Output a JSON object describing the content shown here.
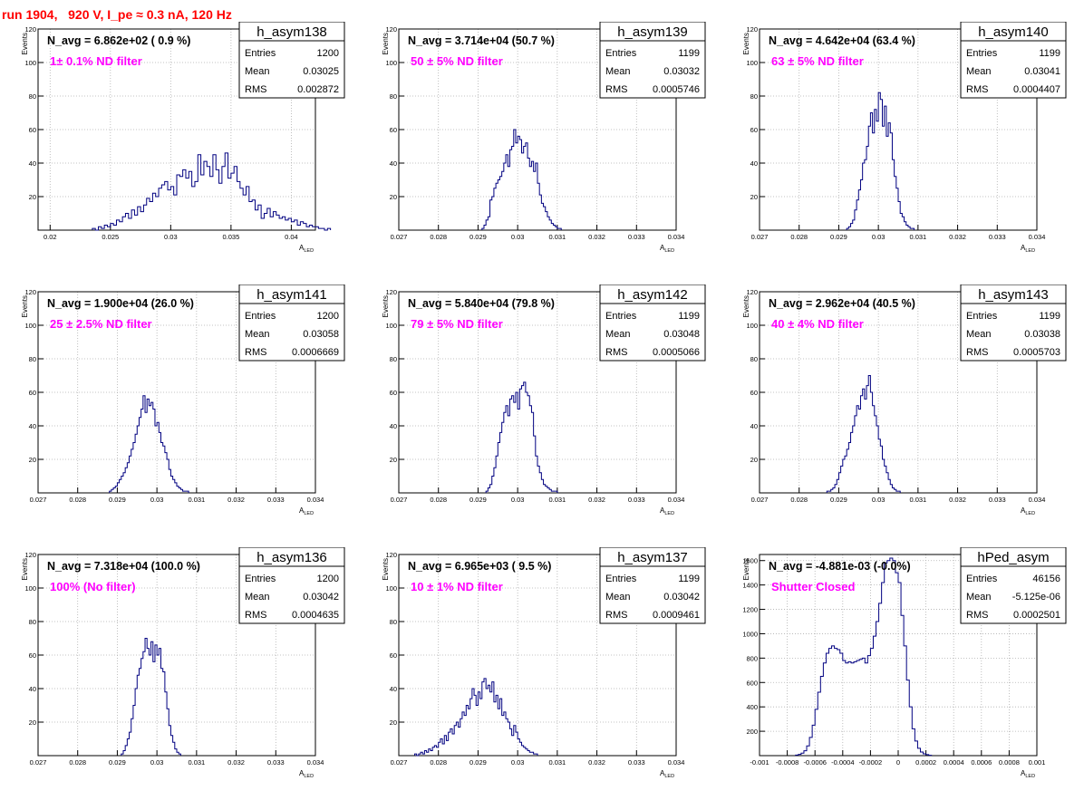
{
  "run_title": "run 1904,   920 V, I_pe ≈ 0.3 nA, 120 Hz",
  "ylabel": "Events",
  "xlabel_main": "A",
  "xlabel_sub": "LED",
  "stat_labels": {
    "entries": "Entries",
    "mean": "Mean",
    "rms": "RMS"
  },
  "colors": {
    "hist": "#000080",
    "title": "#ff0000",
    "annotation": "#ff00ff",
    "grid": "#b0b0b0"
  },
  "chart_data": [
    {
      "type": "histogram",
      "hist_name": "h_asym138",
      "stats": {
        "entries": "1200",
        "mean": "0.03025",
        "rms": "0.002872"
      },
      "navg_text": "N_avg = 6.862e+02 ( 0.9 %)",
      "note_text": "1± 0.1% ND filter",
      "xlim": [
        0.019,
        0.042
      ],
      "ylim": [
        0,
        120
      ],
      "xticks": [
        0.02,
        0.025,
        0.03,
        0.035,
        0.04
      ],
      "xticklabels": [
        "0.02",
        "0.025",
        "0.03",
        "0.035",
        "0.04"
      ],
      "yticks": [
        20,
        40,
        60,
        80,
        100,
        120
      ],
      "yticklabels": [
        "20",
        "40",
        "60",
        "80",
        "100",
        "120"
      ],
      "x_start": 0.0235,
      "bin_width": 0.00025,
      "values": [
        1,
        0,
        2,
        1,
        3,
        2,
        4,
        3,
        6,
        5,
        8,
        10,
        7,
        12,
        9,
        14,
        11,
        15,
        19,
        17,
        22,
        20,
        25,
        27,
        29,
        24,
        26,
        21,
        33,
        32,
        36,
        31,
        35,
        26,
        29,
        45,
        33,
        41,
        38,
        32,
        45,
        36,
        28,
        38,
        46,
        31,
        34,
        38,
        29,
        25,
        21,
        26,
        17,
        18,
        12,
        15,
        7,
        10,
        13,
        8,
        11,
        9,
        7,
        8,
        6,
        7,
        5,
        6,
        3,
        5,
        4,
        2,
        3,
        2,
        2,
        1,
        1,
        0,
        1
      ]
    },
    {
      "type": "histogram",
      "hist_name": "h_asym139",
      "stats": {
        "entries": "1199",
        "mean": "0.03032",
        "rms": "0.0005746"
      },
      "navg_text": "N_avg = 3.714e+04 (50.7 %)",
      "note_text": "50 ± 5% ND filter",
      "xlim": [
        0.027,
        0.034
      ],
      "ylim": [
        0,
        120
      ],
      "xticks": [
        0.027,
        0.028,
        0.029,
        0.03,
        0.031,
        0.032,
        0.033,
        0.034
      ],
      "xticklabels": [
        "0.027",
        "0.028",
        "0.029",
        "0.03",
        "0.031",
        "0.032",
        "0.033",
        "0.034"
      ],
      "yticks": [
        20,
        40,
        60,
        80,
        100,
        120
      ],
      "yticklabels": [
        "20",
        "40",
        "60",
        "80",
        "100",
        "120"
      ],
      "x_start": 0.0291,
      "bin_width": 5e-05,
      "values": [
        1,
        3,
        6,
        8,
        18,
        20,
        25,
        28,
        30,
        32,
        35,
        40,
        45,
        38,
        48,
        50,
        60,
        52,
        56,
        54,
        46,
        50,
        52,
        43,
        38,
        41,
        35,
        40,
        28,
        21,
        16,
        14,
        11,
        8,
        6,
        4,
        3,
        2,
        1,
        1
      ]
    },
    {
      "type": "histogram",
      "hist_name": "h_asym140",
      "stats": {
        "entries": "1199",
        "mean": "0.03041",
        "rms": "0.0004407"
      },
      "navg_text": "N_avg = 4.642e+04 (63.4 %)",
      "note_text": "63 ± 5% ND filter",
      "xlim": [
        0.027,
        0.034
      ],
      "ylim": [
        0,
        120
      ],
      "xticks": [
        0.027,
        0.028,
        0.029,
        0.03,
        0.031,
        0.032,
        0.033,
        0.034
      ],
      "xticklabels": [
        "0.027",
        "0.028",
        "0.029",
        "0.03",
        "0.031",
        "0.032",
        "0.033",
        "0.034"
      ],
      "yticks": [
        20,
        40,
        60,
        80,
        100,
        120
      ],
      "yticklabels": [
        "20",
        "40",
        "60",
        "80",
        "100",
        "120"
      ],
      "x_start": 0.0292,
      "bin_width": 5e-05,
      "values": [
        1,
        2,
        4,
        6,
        12,
        18,
        24,
        30,
        40,
        42,
        50,
        62,
        70,
        58,
        72,
        65,
        82,
        78,
        62,
        74,
        56,
        64,
        58,
        42,
        32,
        25,
        17,
        10,
        8,
        5,
        3,
        2,
        1,
        1
      ]
    },
    {
      "type": "histogram",
      "hist_name": "h_asym141",
      "stats": {
        "entries": "1200",
        "mean": "0.03058",
        "rms": "0.0006669"
      },
      "navg_text": "N_avg = 1.900e+04 (26.0 %)",
      "note_text": "25 ± 2.5% ND filter",
      "xlim": [
        0.027,
        0.034
      ],
      "ylim": [
        0,
        120
      ],
      "xticks": [
        0.027,
        0.028,
        0.029,
        0.03,
        0.031,
        0.032,
        0.033,
        0.034
      ],
      "xticklabels": [
        "0.027",
        "0.028",
        "0.029",
        "0.03",
        "0.031",
        "0.032",
        "0.033",
        "0.034"
      ],
      "yticks": [
        20,
        40,
        60,
        80,
        100,
        120
      ],
      "yticklabels": [
        "20",
        "40",
        "60",
        "80",
        "100",
        "120"
      ],
      "x_start": 0.0288,
      "bin_width": 5e-05,
      "values": [
        1,
        2,
        3,
        4,
        6,
        8,
        10,
        12,
        15,
        18,
        22,
        26,
        30,
        35,
        40,
        45,
        50,
        58,
        48,
        56,
        52,
        54,
        50,
        40,
        42,
        36,
        30,
        28,
        24,
        20,
        14,
        10,
        8,
        6,
        4,
        3,
        2,
        1,
        1,
        1
      ]
    },
    {
      "type": "histogram",
      "hist_name": "h_asym142",
      "stats": {
        "entries": "1199",
        "mean": "0.03048",
        "rms": "0.0005066"
      },
      "navg_text": "N_avg = 5.840e+04 (79.8 %)",
      "note_text": "79 ± 5% ND filter",
      "xlim": [
        0.027,
        0.034
      ],
      "ylim": [
        0,
        120
      ],
      "xticks": [
        0.027,
        0.028,
        0.029,
        0.03,
        0.031,
        0.032,
        0.033,
        0.034
      ],
      "xticklabels": [
        "0.027",
        "0.028",
        "0.029",
        "0.03",
        "0.031",
        "0.032",
        "0.033",
        "0.034"
      ],
      "yticks": [
        20,
        40,
        60,
        80,
        100,
        120
      ],
      "yticklabels": [
        "20",
        "40",
        "60",
        "80",
        "100",
        "120"
      ],
      "x_start": 0.0292,
      "bin_width": 5e-05,
      "values": [
        1,
        3,
        5,
        10,
        15,
        22,
        30,
        36,
        42,
        48,
        52,
        46,
        56,
        58,
        54,
        60,
        50,
        62,
        64,
        66,
        60,
        58,
        52,
        48,
        34,
        22,
        16,
        12,
        8,
        5,
        4,
        3,
        2,
        1,
        1,
        1
      ]
    },
    {
      "type": "histogram",
      "hist_name": "h_asym143",
      "stats": {
        "entries": "1199",
        "mean": "0.03038",
        "rms": "0.0005703"
      },
      "navg_text": "N_avg = 2.962e+04 (40.5 %)",
      "note_text": "40 ± 4% ND filter",
      "xlim": [
        0.027,
        0.034
      ],
      "ylim": [
        0,
        120
      ],
      "xticks": [
        0.027,
        0.028,
        0.029,
        0.03,
        0.031,
        0.032,
        0.033,
        0.034
      ],
      "xticklabels": [
        "0.027",
        "0.028",
        "0.029",
        "0.03",
        "0.031",
        "0.032",
        "0.033",
        "0.034"
      ],
      "yticks": [
        20,
        40,
        60,
        80,
        100,
        120
      ],
      "yticklabels": [
        "20",
        "40",
        "60",
        "80",
        "100",
        "120"
      ],
      "x_start": 0.0287,
      "bin_width": 5e-05,
      "values": [
        1,
        1,
        2,
        3,
        5,
        8,
        12,
        16,
        20,
        22,
        26,
        30,
        36,
        40,
        46,
        52,
        50,
        58,
        62,
        56,
        64,
        70,
        60,
        52,
        46,
        40,
        32,
        28,
        20,
        16,
        12,
        8,
        5,
        3,
        2,
        1,
        1
      ]
    },
    {
      "type": "histogram",
      "hist_name": "h_asym136",
      "stats": {
        "entries": "1200",
        "mean": "0.03042",
        "rms": "0.0004635"
      },
      "navg_text": "N_avg = 7.318e+04 (100.0 %)",
      "note_text": "100% (No filter)",
      "xlim": [
        0.027,
        0.034
      ],
      "ylim": [
        0,
        120
      ],
      "xticks": [
        0.027,
        0.028,
        0.029,
        0.03,
        0.031,
        0.032,
        0.033,
        0.034
      ],
      "xticklabels": [
        "0.027",
        "0.028",
        "0.029",
        "0.03",
        "0.031",
        "0.032",
        "0.033",
        "0.034"
      ],
      "yticks": [
        20,
        40,
        60,
        80,
        100,
        120
      ],
      "yticklabels": [
        "20",
        "40",
        "60",
        "80",
        "100",
        "120"
      ],
      "x_start": 0.0291,
      "bin_width": 5e-05,
      "values": [
        1,
        3,
        6,
        10,
        14,
        22,
        30,
        40,
        48,
        52,
        58,
        62,
        70,
        64,
        60,
        68,
        56,
        66,
        60,
        64,
        52,
        50,
        38,
        28,
        18,
        12,
        8,
        4,
        2,
        1
      ]
    },
    {
      "type": "histogram",
      "hist_name": "h_asym137",
      "stats": {
        "entries": "1199",
        "mean": "0.03042",
        "rms": "0.0009461"
      },
      "navg_text": "N_avg = 6.965e+03 ( 9.5 %)",
      "note_text": "10 ± 1% ND filter",
      "xlim": [
        0.027,
        0.034
      ],
      "ylim": [
        0,
        120
      ],
      "xticks": [
        0.027,
        0.028,
        0.029,
        0.03,
        0.031,
        0.032,
        0.033,
        0.034
      ],
      "xticklabels": [
        "0.027",
        "0.028",
        "0.029",
        "0.03",
        "0.031",
        "0.032",
        "0.033",
        "0.034"
      ],
      "yticks": [
        20,
        40,
        60,
        80,
        100,
        120
      ],
      "yticklabels": [
        "20",
        "40",
        "60",
        "80",
        "100",
        "120"
      ],
      "x_start": 0.0274,
      "bin_width": 5e-05,
      "values": [
        1,
        0,
        1,
        2,
        1,
        3,
        2,
        4,
        3,
        5,
        6,
        5,
        8,
        10,
        7,
        12,
        9,
        14,
        16,
        13,
        18,
        20,
        17,
        22,
        26,
        24,
        30,
        28,
        34,
        40,
        36,
        30,
        38,
        34,
        44,
        46,
        40,
        42,
        38,
        44,
        32,
        36,
        28,
        34,
        24,
        26,
        22,
        20,
        16,
        12,
        18,
        14,
        10,
        8,
        6,
        5,
        4,
        3,
        2,
        2,
        1,
        1
      ]
    },
    {
      "type": "histogram",
      "hist_name": "hPed_asym",
      "stats": {
        "entries": "46156",
        "mean": "-5.125e-06",
        "rms": "0.0002501"
      },
      "navg_text": "N_avg = -4.881e-03 (-0.0%)",
      "note_text": "Shutter Closed",
      "xlim": [
        -0.001,
        0.001
      ],
      "ylim": [
        0,
        1650
      ],
      "xticks": [
        -0.001,
        -0.0008,
        -0.0006,
        -0.0004,
        -0.0002,
        0,
        0.0002,
        0.0004,
        0.0006,
        0.0008,
        0.001
      ],
      "xticklabels": [
        "-0.001",
        "-0.0008",
        "-0.0006",
        "-0.0004",
        "-0.0002",
        "0",
        "0.0002",
        "0.0004",
        "0.0006",
        "0.0008",
        "0.001"
      ],
      "yticks": [
        200,
        400,
        600,
        800,
        1000,
        1200,
        1400,
        1600
      ],
      "yticklabels": [
        "200",
        "400",
        "600",
        "800",
        "1000",
        "1200",
        "1400",
        "1600"
      ],
      "x_start": -0.00074,
      "bin_width": 2e-05,
      "values": [
        5,
        10,
        20,
        40,
        80,
        150,
        250,
        380,
        520,
        650,
        760,
        840,
        880,
        900,
        880,
        870,
        840,
        780,
        760,
        770,
        760,
        770,
        780,
        790,
        800,
        760,
        820,
        880,
        980,
        1100,
        1250,
        1420,
        1580,
        1600,
        1620,
        1600,
        1500,
        1420,
        1150,
        900,
        620,
        400,
        220,
        120,
        60,
        30,
        15,
        8,
        3
      ]
    }
  ]
}
